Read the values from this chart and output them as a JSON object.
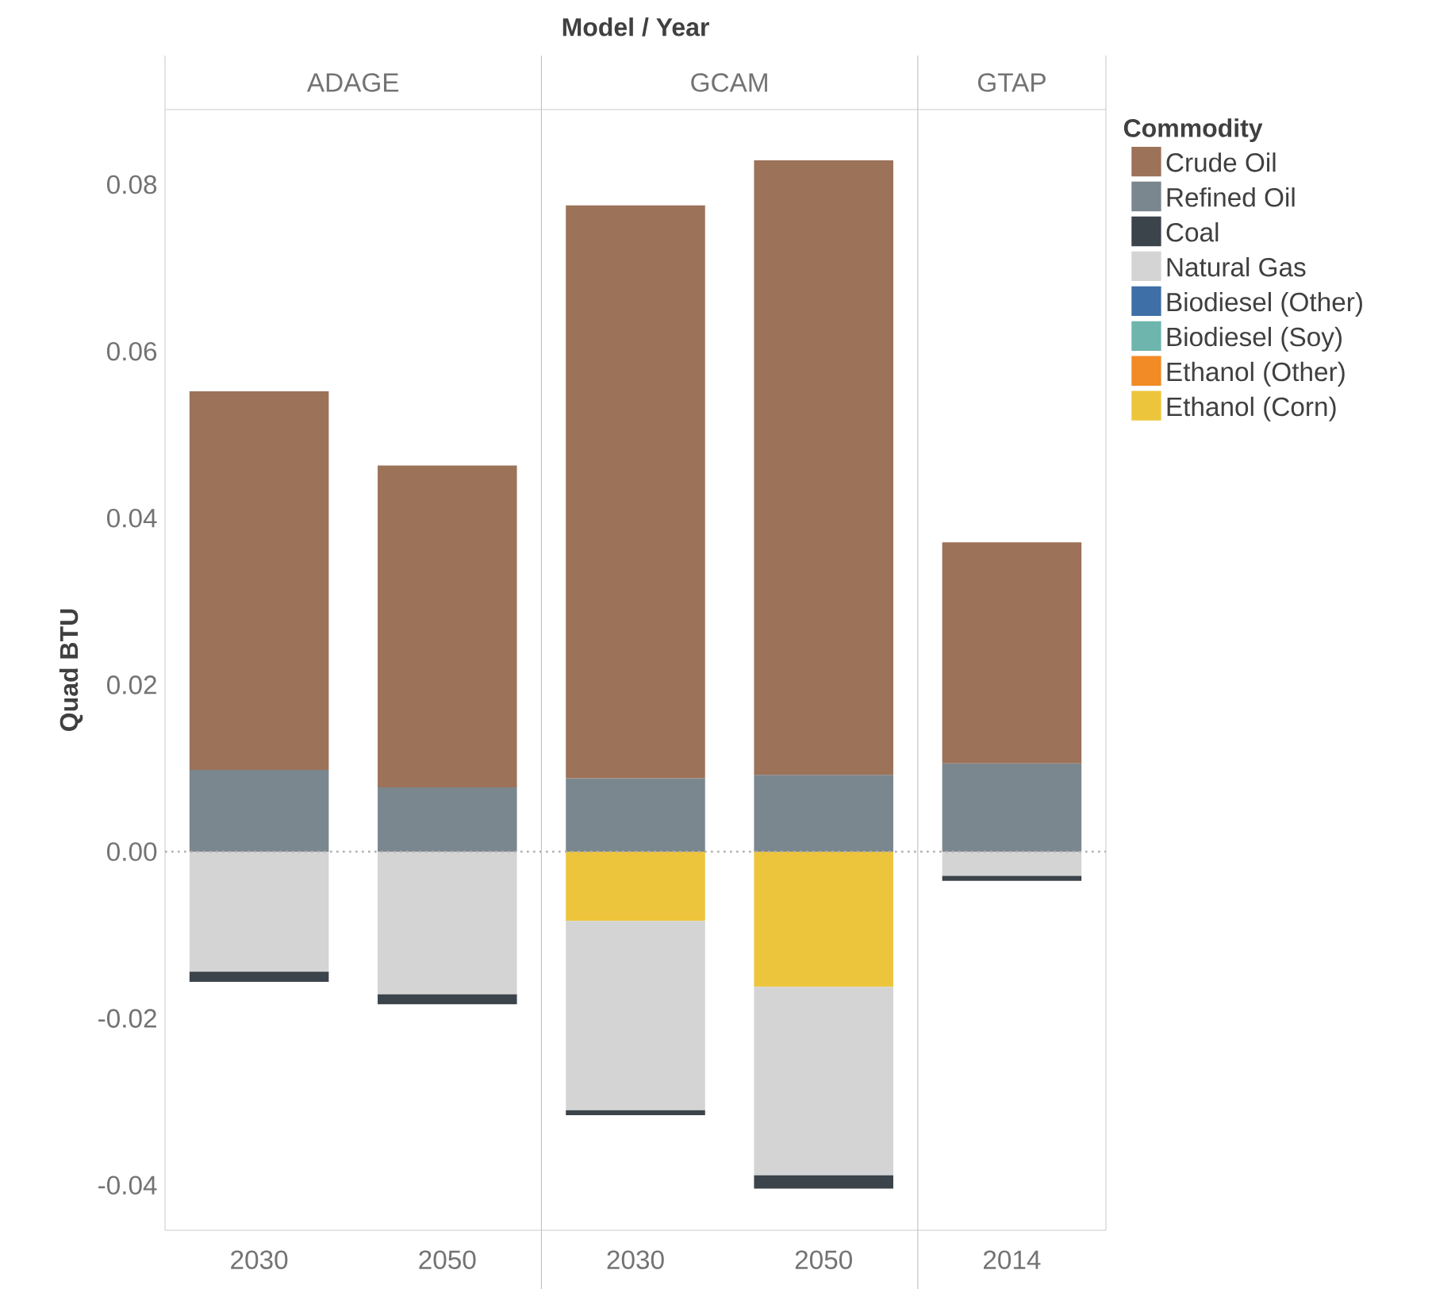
{
  "chart_data": {
    "type": "bar",
    "stacked": true,
    "title": "Model / Year",
    "ylabel": "Quad BTU",
    "legend_title": "Commodity",
    "legend": "right",
    "categories": [
      "2030",
      "2050",
      "2030",
      "2050",
      "2014"
    ],
    "annotations": [
      "ADAGE",
      "GCAM",
      "GTAP"
    ],
    "series": [
      {
        "name": "Ethanol (Corn)",
        "color": "#ecc53c",
        "values": [
          null,
          null,
          -0.0083,
          -0.0162,
          null
        ]
      },
      {
        "name": "Ethanol (Other)",
        "color": "#f28a26",
        "values": [
          null,
          null,
          null,
          null,
          null
        ]
      },
      {
        "name": "Biodiesel (Soy)",
        "color": "#6db5ad",
        "values": [
          null,
          null,
          null,
          null,
          null
        ]
      },
      {
        "name": "Biodiesel (Other)",
        "color": "#3e6fa6",
        "values": [
          null,
          null,
          null,
          null,
          null
        ]
      },
      {
        "name": "Natural Gas",
        "color": "#d4d4d4",
        "values": [
          -0.0144,
          -0.0171,
          -0.0227,
          -0.0226,
          -0.0029
        ]
      },
      {
        "name": "Coal",
        "color": "#3b434b",
        "values": [
          -0.0012,
          -0.0012,
          -0.0006,
          -0.0016,
          -0.0006
        ]
      },
      {
        "name": "Refined Oil",
        "color": "#7b878e",
        "values": [
          0.0098,
          0.0077,
          0.0088,
          0.0092,
          0.0106
        ]
      },
      {
        "name": "Crude Oil",
        "color": "#9c7259",
        "values": [
          0.0454,
          0.0386,
          0.0687,
          0.0737,
          0.0265
        ]
      }
    ],
    "ylim": [
      -0.0454,
      0.089
    ],
    "yticks": [
      {
        "value": -0.04,
        "label": "-0.04"
      },
      {
        "value": -0.02,
        "label": "-0.02"
      },
      {
        "value": 0,
        "label": "0.00"
      },
      {
        "value": 0.02,
        "label": "0.02"
      },
      {
        "value": 0.04,
        "label": "0.04"
      },
      {
        "value": 0.06,
        "label": "0.06"
      },
      {
        "value": 0.08,
        "label": "0.08"
      }
    ],
    "ref_lines": [
      {
        "axis": "y",
        "value": 0,
        "color": "#b0b0b0",
        "line_style": "dotted"
      }
    ]
  }
}
